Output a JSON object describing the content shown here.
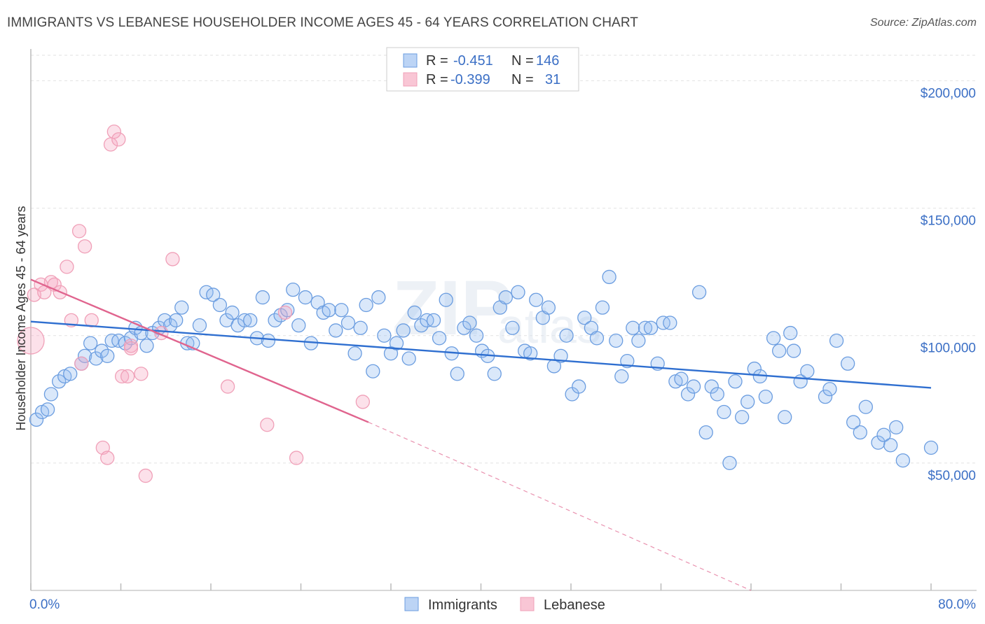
{
  "title": "IMMIGRANTS VS LEBANESE HOUSEHOLDER INCOME AGES 45 - 64 YEARS CORRELATION CHART",
  "source": "Source: ZipAtlas.com",
  "watermark": {
    "zip": "ZIP",
    "atlas": "atlas"
  },
  "legend": {
    "rows": [
      {
        "r_label": "R =",
        "r_value": "-0.451",
        "n_label": "N =",
        "n_value": "146"
      },
      {
        "r_label": "R =",
        "r_value": "-0.399",
        "n_label": "N =",
        "n_value": "31"
      }
    ]
  },
  "colors": {
    "immigrants": "#6b9de0",
    "lebanese": "#f0a0b8",
    "immigrants_line": "#2f6fd0",
    "lebanese_line": "#e0648e"
  },
  "chart_data": {
    "type": "scatter",
    "title": "IMMIGRANTS VS LEBANESE HOUSEHOLDER INCOME AGES 45 - 64 YEARS CORRELATION CHART",
    "xlabel": "",
    "ylabel": "Householder Income Ages 45 - 64 years",
    "xlim": [
      0,
      80
    ],
    "ylim": [
      0,
      210000
    ],
    "x_tick_labels": [
      "0.0%",
      "80.0%"
    ],
    "y_ticks": [
      50000,
      100000,
      150000,
      200000
    ],
    "y_tick_labels": [
      "$50,000",
      "$100,000",
      "$150,000",
      "$200,000"
    ],
    "grid": true,
    "legend_position": "top-center",
    "series": [
      {
        "name": "Immigrants",
        "trend": {
          "x": [
            0,
            80
          ],
          "y": [
            105500,
            79500
          ]
        },
        "points": [
          [
            0.5,
            67000
          ],
          [
            1,
            70000
          ],
          [
            1.5,
            71000
          ],
          [
            1.8,
            77000
          ],
          [
            2.5,
            82000
          ],
          [
            3,
            84000
          ],
          [
            3.5,
            85000
          ],
          [
            4.5,
            89000
          ],
          [
            4.8,
            92000
          ],
          [
            5.3,
            97000
          ],
          [
            5.8,
            91000
          ],
          [
            6.3,
            94000
          ],
          [
            6.8,
            92000
          ],
          [
            7.2,
            98000
          ],
          [
            7.8,
            98000
          ],
          [
            8.4,
            97000
          ],
          [
            8.9,
            99000
          ],
          [
            9.3,
            103000
          ],
          [
            9.8,
            101000
          ],
          [
            10.3,
            96000
          ],
          [
            10.8,
            101000
          ],
          [
            11.4,
            103000
          ],
          [
            11.9,
            106000
          ],
          [
            12.4,
            104000
          ],
          [
            12.9,
            106000
          ],
          [
            13.4,
            111000
          ],
          [
            13.9,
            97000
          ],
          [
            14.4,
            97000
          ],
          [
            15,
            104000
          ],
          [
            15.6,
            117000
          ],
          [
            16.2,
            116000
          ],
          [
            16.8,
            112000
          ],
          [
            17.4,
            106000
          ],
          [
            17.9,
            109000
          ],
          [
            18.4,
            104000
          ],
          [
            19,
            106000
          ],
          [
            19.5,
            106000
          ],
          [
            20.1,
            99000
          ],
          [
            20.6,
            115000
          ],
          [
            21.1,
            98000
          ],
          [
            21.7,
            106000
          ],
          [
            22.2,
            108000
          ],
          [
            22.8,
            110000
          ],
          [
            23.3,
            118000
          ],
          [
            23.8,
            104000
          ],
          [
            24.4,
            115000
          ],
          [
            24.9,
            97000
          ],
          [
            25.5,
            113000
          ],
          [
            26,
            109000
          ],
          [
            26.5,
            110000
          ],
          [
            27.1,
            102000
          ],
          [
            27.6,
            110000
          ],
          [
            28.2,
            105000
          ],
          [
            28.8,
            93000
          ],
          [
            29.3,
            103000
          ],
          [
            29.8,
            112000
          ],
          [
            30.4,
            86000
          ],
          [
            30.9,
            115000
          ],
          [
            31.4,
            100000
          ],
          [
            32,
            93000
          ],
          [
            32.5,
            97000
          ],
          [
            33.1,
            102000
          ],
          [
            33.6,
            91000
          ],
          [
            34.1,
            109000
          ],
          [
            34.7,
            104000
          ],
          [
            35.2,
            106000
          ],
          [
            35.8,
            106000
          ],
          [
            36.3,
            99000
          ],
          [
            36.9,
            114000
          ],
          [
            37.4,
            93000
          ],
          [
            37.9,
            85000
          ],
          [
            38.5,
            103000
          ],
          [
            39,
            105000
          ],
          [
            39.6,
            100000
          ],
          [
            40.1,
            94000
          ],
          [
            40.6,
            92000
          ],
          [
            41.2,
            85000
          ],
          [
            41.7,
            111000
          ],
          [
            42.2,
            115000
          ],
          [
            42.8,
            103000
          ],
          [
            43.3,
            117000
          ],
          [
            43.9,
            94000
          ],
          [
            44.4,
            93000
          ],
          [
            44.9,
            114000
          ],
          [
            45.5,
            107000
          ],
          [
            46,
            111000
          ],
          [
            46.5,
            88000
          ],
          [
            47.1,
            92000
          ],
          [
            47.6,
            100000
          ],
          [
            48.1,
            77000
          ],
          [
            48.7,
            80000
          ],
          [
            49.2,
            107000
          ],
          [
            49.8,
            103000
          ],
          [
            50.3,
            99000
          ],
          [
            50.8,
            111000
          ],
          [
            51.4,
            123000
          ],
          [
            52,
            98000
          ],
          [
            52.5,
            84000
          ],
          [
            53,
            90000
          ],
          [
            53.5,
            103000
          ],
          [
            54,
            98000
          ],
          [
            54.6,
            103000
          ],
          [
            55.1,
            103000
          ],
          [
            55.7,
            89000
          ],
          [
            56.2,
            105000
          ],
          [
            56.8,
            105000
          ],
          [
            57.3,
            82000
          ],
          [
            57.8,
            83000
          ],
          [
            58.4,
            77000
          ],
          [
            58.9,
            80000
          ],
          [
            59.4,
            117000
          ],
          [
            60,
            62000
          ],
          [
            60.5,
            80000
          ],
          [
            61,
            77000
          ],
          [
            61.6,
            70000
          ],
          [
            62.1,
            50000
          ],
          [
            62.6,
            82000
          ],
          [
            63.2,
            68000
          ],
          [
            63.7,
            74000
          ],
          [
            64.3,
            87000
          ],
          [
            64.8,
            84000
          ],
          [
            65.3,
            76000
          ],
          [
            66,
            99000
          ],
          [
            66.5,
            94000
          ],
          [
            67,
            68000
          ],
          [
            67.5,
            101000
          ],
          [
            67.8,
            94000
          ],
          [
            68.4,
            82000
          ],
          [
            69,
            86000
          ],
          [
            70.6,
            76000
          ],
          [
            71,
            79000
          ],
          [
            71.6,
            98000
          ],
          [
            72.6,
            89000
          ],
          [
            73.1,
            66000
          ],
          [
            73.7,
            62000
          ],
          [
            74.2,
            72000
          ],
          [
            75.3,
            58000
          ],
          [
            75.8,
            61000
          ],
          [
            76.4,
            57000
          ],
          [
            76.9,
            64000
          ],
          [
            77.5,
            51000
          ],
          [
            80,
            56000
          ]
        ]
      },
      {
        "name": "Lebanese",
        "trend": {
          "x": [
            0,
            30
          ],
          "y": [
            122000,
            66000
          ]
        },
        "trend_extension": {
          "x": [
            30,
            64
          ],
          "y": [
            66000,
            0
          ]
        },
        "points": [
          [
            0,
            98000
          ],
          [
            0.3,
            116000
          ],
          [
            0.9,
            120000
          ],
          [
            1.2,
            117000
          ],
          [
            1.8,
            121000
          ],
          [
            2.1,
            120000
          ],
          [
            2.6,
            117000
          ],
          [
            3.2,
            127000
          ],
          [
            3.6,
            106000
          ],
          [
            4.5,
            89000
          ],
          [
            4.3,
            141000
          ],
          [
            4.8,
            135000
          ],
          [
            5.4,
            106000
          ],
          [
            6.4,
            56000
          ],
          [
            6.8,
            52000
          ],
          [
            7.1,
            175000
          ],
          [
            7.4,
            180000
          ],
          [
            7.8,
            177000
          ],
          [
            8.1,
            84000
          ],
          [
            8.6,
            84000
          ],
          [
            8.9,
            96000
          ],
          [
            9.8,
            85000
          ],
          [
            10.2,
            45000
          ],
          [
            11.6,
            101000
          ],
          [
            12.6,
            130000
          ],
          [
            17.5,
            80000
          ],
          [
            21,
            65000
          ],
          [
            22.6,
            109000
          ],
          [
            23.6,
            52000
          ],
          [
            29.5,
            74000
          ],
          [
            8.9,
            95000
          ]
        ]
      }
    ]
  },
  "bottom_legend": [
    "Immigrants",
    "Lebanese"
  ]
}
